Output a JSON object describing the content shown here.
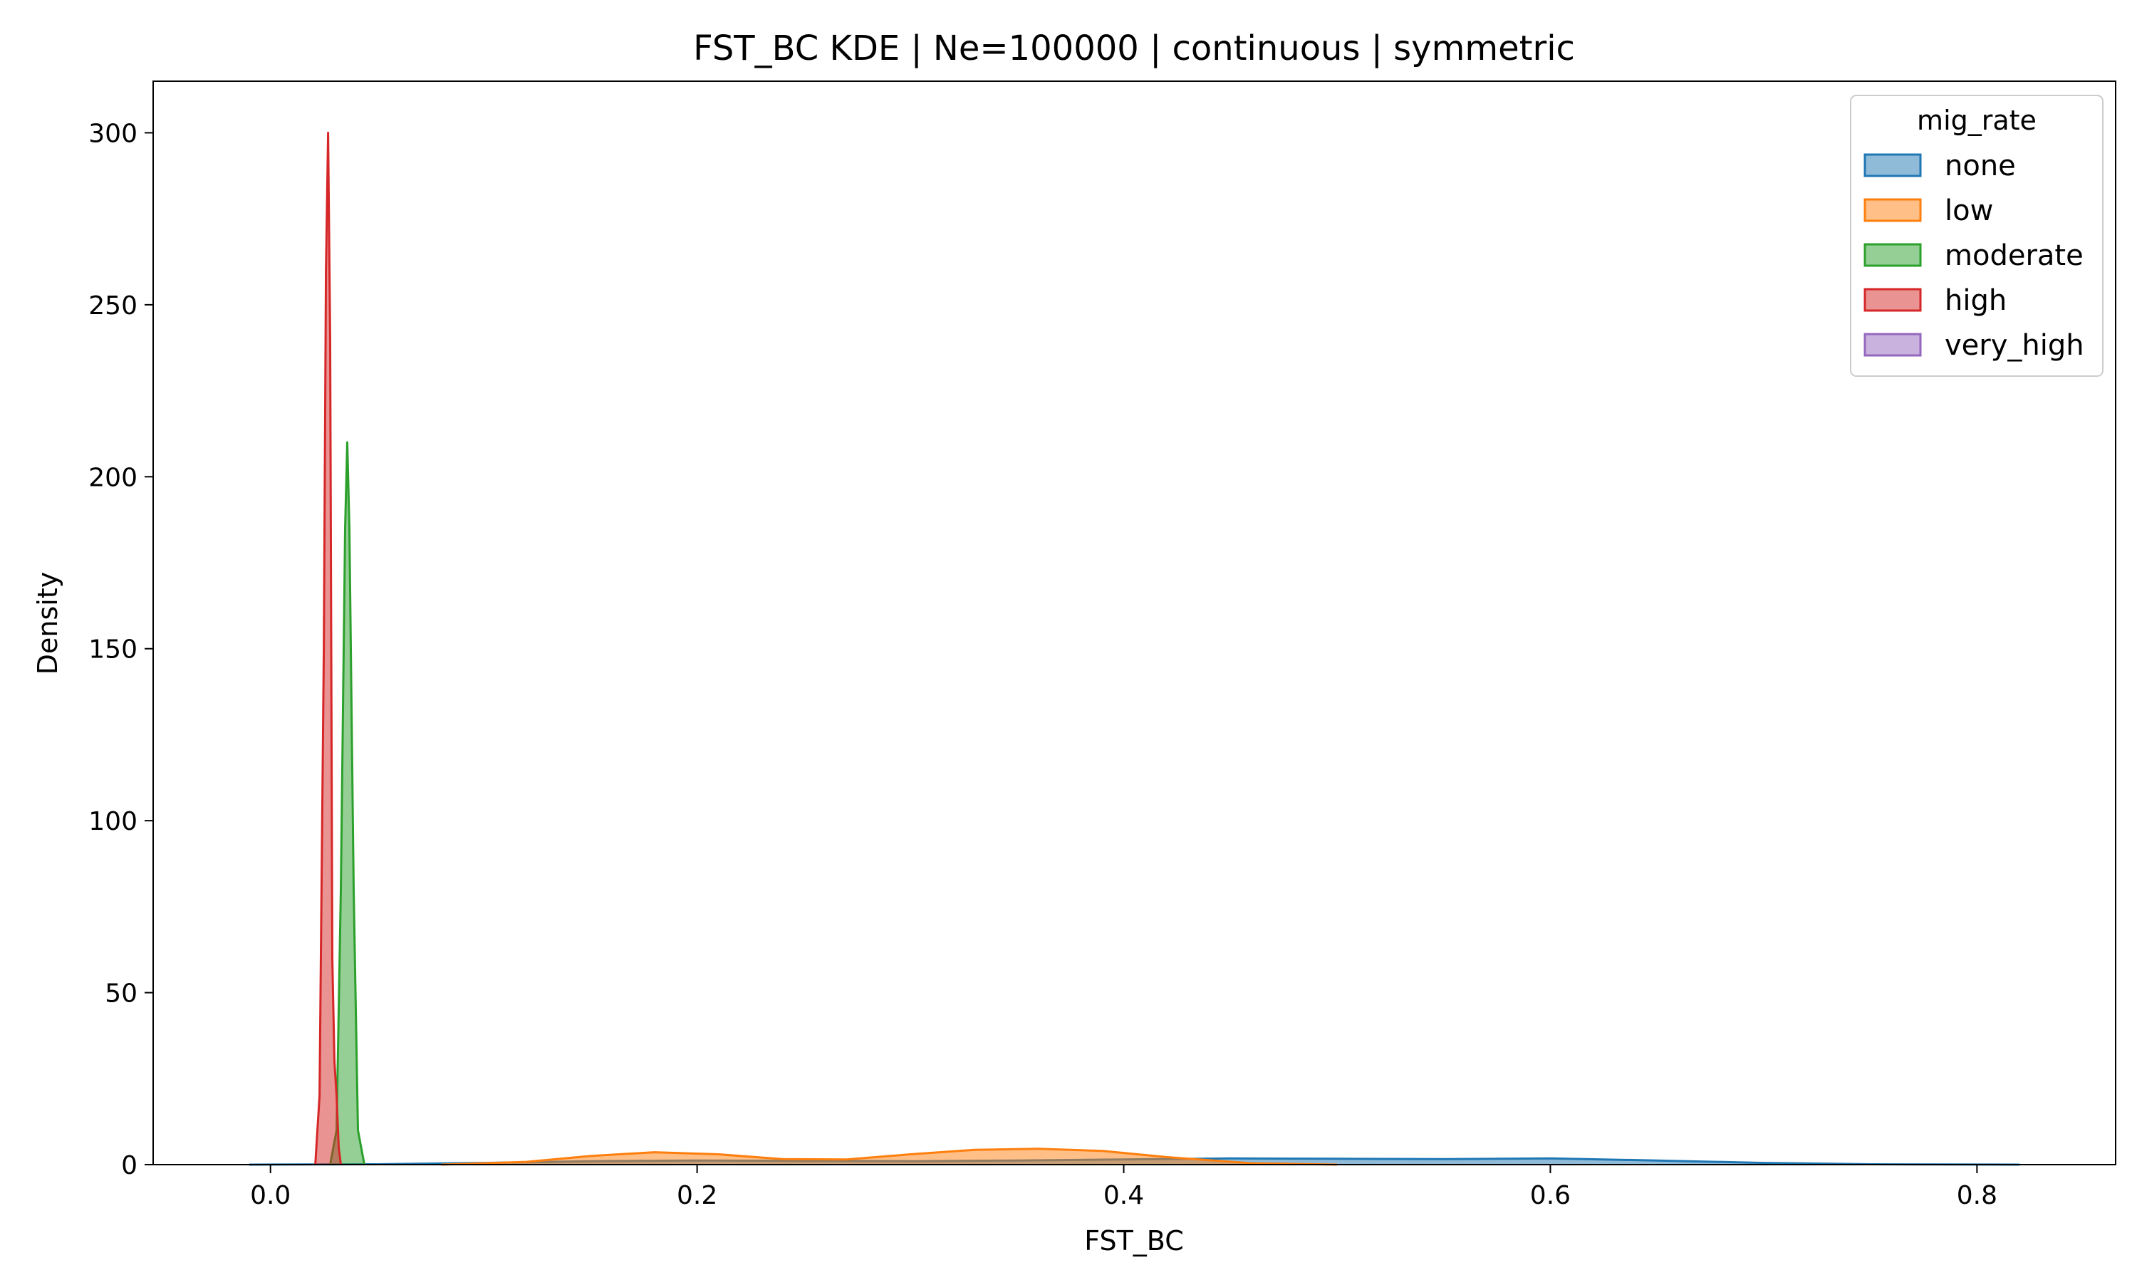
{
  "chart_data": {
    "type": "area",
    "title": "FST_BC KDE | Ne=100000 | continuous | symmetric",
    "xlabel": "FST_BC",
    "ylabel": "Density",
    "xlim": [
      -0.055,
      0.865
    ],
    "ylim": [
      0,
      315
    ],
    "xticks": [
      0.0,
      0.2,
      0.4,
      0.6,
      0.8
    ],
    "xtick_labels": [
      "0.0",
      "0.2",
      "0.4",
      "0.6",
      "0.8"
    ],
    "yticks": [
      0,
      50,
      100,
      150,
      200,
      250,
      300
    ],
    "ytick_labels": [
      "0",
      "50",
      "100",
      "150",
      "200",
      "250",
      "300"
    ],
    "grid": false,
    "legend": {
      "title": "mig_rate",
      "placement": "top-right",
      "entries": [
        "none",
        "low",
        "moderate",
        "high",
        "very_high"
      ]
    },
    "series": [
      {
        "name": "none",
        "color": "#1f77b4",
        "x": [
          -0.01,
          0.05,
          0.1,
          0.15,
          0.2,
          0.25,
          0.3,
          0.35,
          0.4,
          0.45,
          0.5,
          0.55,
          0.6,
          0.65,
          0.7,
          0.75,
          0.82
        ],
        "y": [
          0,
          0.1,
          0.5,
          1.0,
          1.2,
          1.1,
          1.0,
          1.2,
          1.5,
          1.8,
          1.7,
          1.6,
          1.8,
          1.2,
          0.5,
          0.1,
          0
        ]
      },
      {
        "name": "low",
        "color": "#ff7f0e",
        "x": [
          0.08,
          0.12,
          0.15,
          0.18,
          0.21,
          0.24,
          0.27,
          0.3,
          0.33,
          0.36,
          0.39,
          0.42,
          0.46,
          0.5
        ],
        "y": [
          0,
          0.8,
          2.5,
          3.6,
          3.0,
          1.6,
          1.5,
          3.0,
          4.3,
          4.6,
          4.0,
          2.2,
          0.4,
          0
        ]
      },
      {
        "name": "moderate",
        "color": "#2ca02c",
        "x": [
          0.028,
          0.031,
          0.033,
          0.035,
          0.036,
          0.037,
          0.039,
          0.041,
          0.044
        ],
        "y": [
          0,
          10,
          80,
          185,
          210,
          185,
          80,
          10,
          0
        ]
      },
      {
        "name": "high",
        "color": "#d62728",
        "x": [
          0.021,
          0.023,
          0.025,
          0.026,
          0.027,
          0.028,
          0.029,
          0.03,
          0.031,
          0.032,
          0.033
        ],
        "y": [
          0,
          20,
          150,
          260,
          300,
          240,
          60,
          30,
          20,
          5,
          0
        ]
      },
      {
        "name": "very_high",
        "color": "#9467bd",
        "x": [],
        "y": []
      }
    ]
  }
}
